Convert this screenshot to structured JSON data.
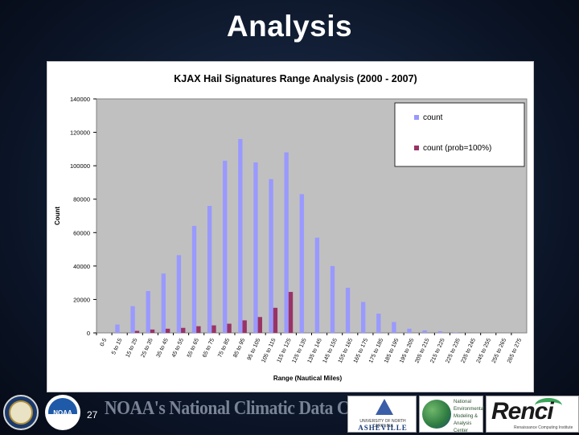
{
  "slide": {
    "title": "Analysis",
    "page_number": "27"
  },
  "footer": {
    "banner_text": "NOAA's National Climatic Data Center",
    "logo_noaa_text": "NOAA",
    "unca_line": "UNIVERSITY OF NORTH CAROLINA",
    "unca_big": "ASHEVILLE",
    "nemac_lines": [
      "National",
      "Environmental",
      "Modeling &",
      "Analysis",
      "Center"
    ],
    "renci_word": "Renci",
    "renci_tag": "Renaissance Computing Institute"
  },
  "chart_data": {
    "type": "bar",
    "title": "KJAX Hail Signatures Range Analysis (2000 - 2007)",
    "xlabel": "Range (Nautical Miles)",
    "ylabel": "Count",
    "ylim": [
      0,
      140000
    ],
    "yticks": [
      "0",
      "20000",
      "40000",
      "60000",
      "80000",
      "100000",
      "120000",
      "140000"
    ],
    "ytick_values": [
      0,
      20000,
      40000,
      60000,
      80000,
      100000,
      120000,
      140000
    ],
    "grid": false,
    "legend_position": "top-right",
    "plot_background": "#c0c0c0",
    "categories": [
      "0-5",
      "5 to 15",
      "15 to 25",
      "25 to 35",
      "35 to 45",
      "45 to 55",
      "55 to 65",
      "65 to 75",
      "75 to 85",
      "85 to 95",
      "95 to 105",
      "105 to 115",
      "115 to 125",
      "125 to 135",
      "135 to 145",
      "145 to 155",
      "155 to 165",
      "165 to 175",
      "175 to 185",
      "185 to 195",
      "195 to 205",
      "205 to 215",
      "215 to 225",
      "225 to 235",
      "235 to 245",
      "245 to 255",
      "255 to 265",
      "265 to 275"
    ],
    "series": [
      {
        "name": "count",
        "color": "#9999ff",
        "values": [
          0,
          5000,
          16000,
          25000,
          35500,
          46500,
          64000,
          76000,
          103000,
          116000,
          102000,
          92000,
          108000,
          83000,
          57000,
          40000,
          27000,
          18500,
          11500,
          6500,
          2500,
          1500,
          1000,
          300,
          0,
          0,
          0,
          0
        ]
      },
      {
        "name": "count (prob=100%)",
        "color": "#993366",
        "values": [
          0,
          0,
          1200,
          2000,
          2500,
          3000,
          4000,
          4500,
          5500,
          7500,
          9500,
          15000,
          24500,
          0,
          0,
          0,
          0,
          0,
          0,
          0,
          0,
          0,
          0,
          0,
          0,
          0,
          0,
          0
        ]
      }
    ]
  }
}
